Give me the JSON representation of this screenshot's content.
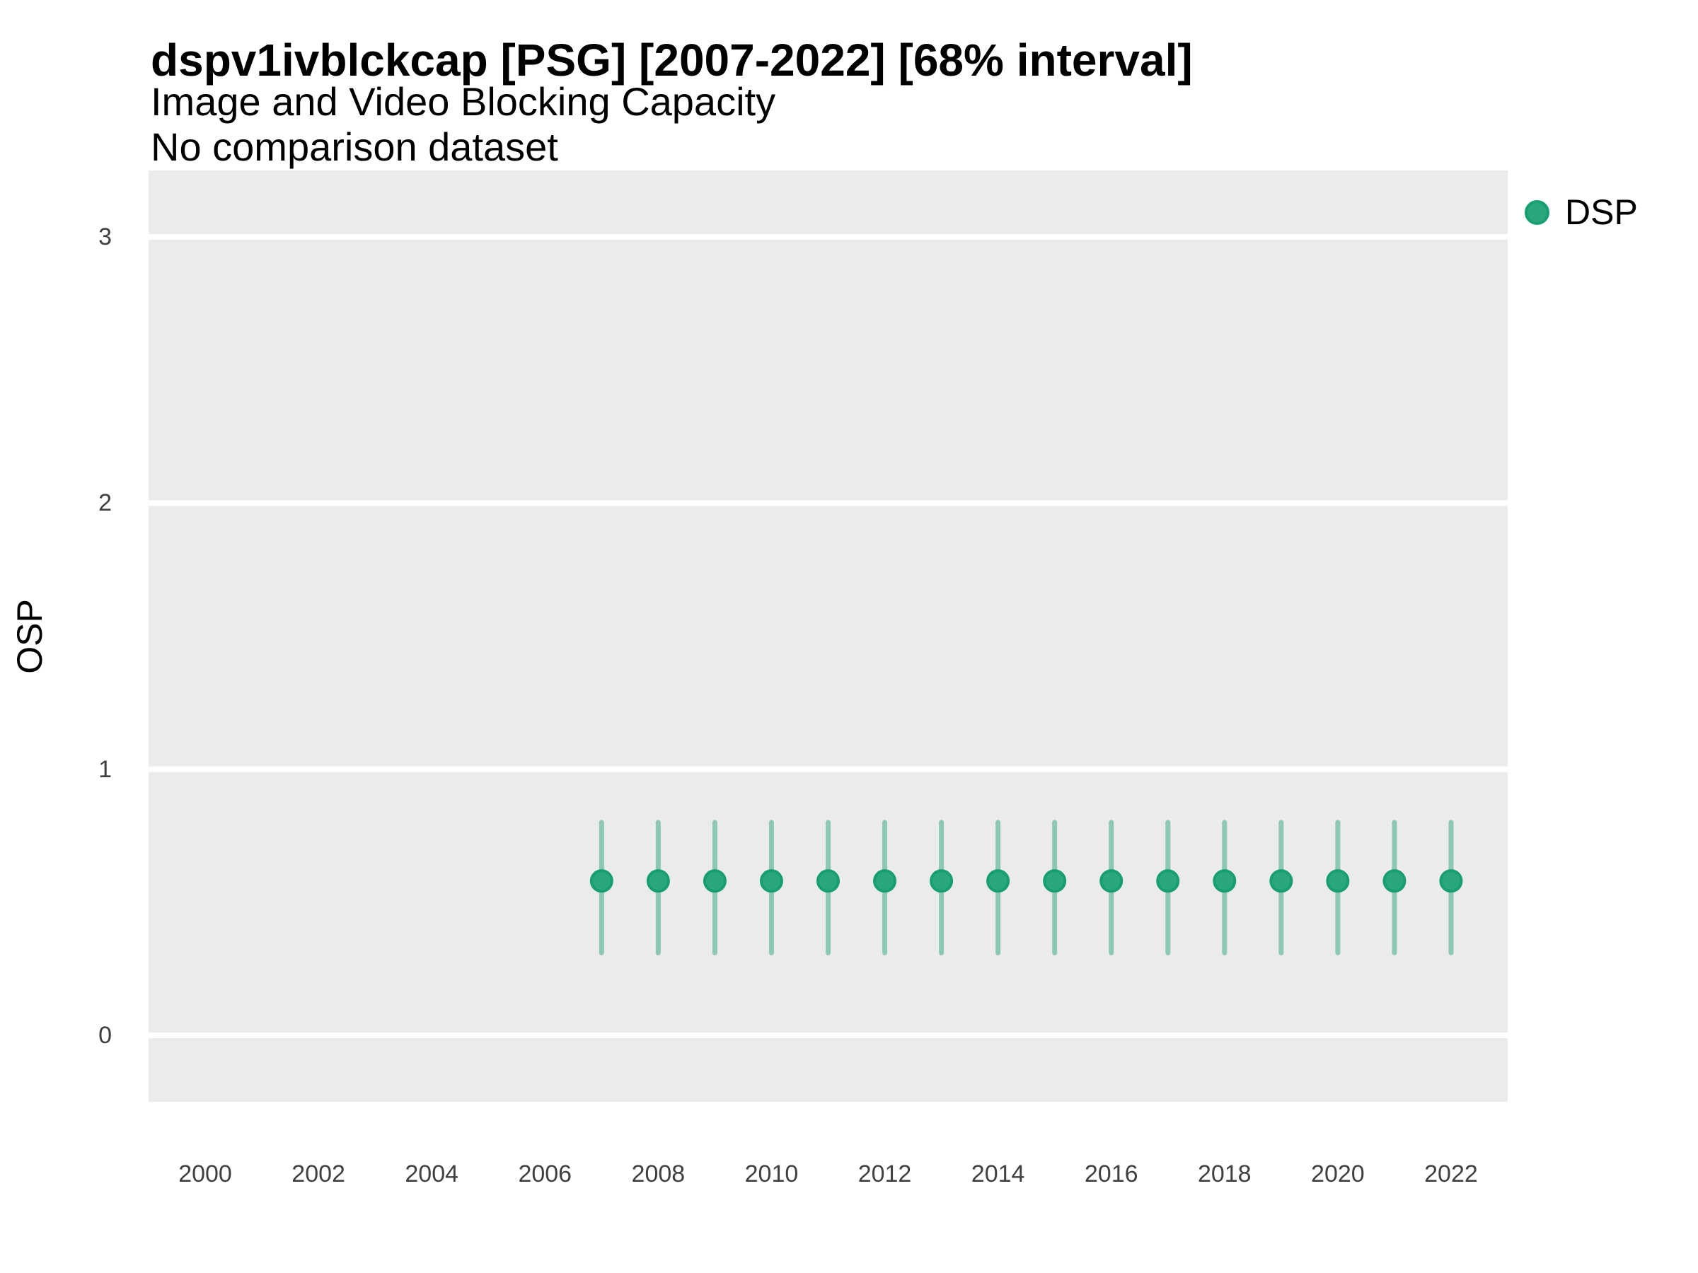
{
  "header": {
    "title": "dspv1ivblckcap [PSG] [2007-2022] [68% interval]",
    "subtitle_line1": "Image and Video Blocking Capacity",
    "subtitle_line2": "No comparison dataset"
  },
  "legend": {
    "position": "right",
    "items": [
      {
        "label": "DSP",
        "color": "#2AA87C",
        "border_color": "#179E73",
        "shape": "circle"
      }
    ]
  },
  "colors": {
    "panel_background": "#EBEBEB",
    "gridline": "#FFFFFF",
    "point_fill": "#2AA87C",
    "point_stroke": "#179E73",
    "errorbar": "rgba(27,158,119,0.45)",
    "tick_text": "#404040",
    "title_text": "#000000"
  },
  "chart_data": {
    "type": "scatter",
    "title": "dspv1ivblckcap [PSG] [2007-2022] [68% interval]",
    "subtitle": [
      "Image and Video Blocking Capacity",
      "No comparison dataset"
    ],
    "xlabel": "",
    "ylabel": "OSP",
    "interval": "68%",
    "xlim": [
      1999,
      2023
    ],
    "ylim": [
      -0.25,
      3.25
    ],
    "x_ticks": [
      2000,
      2002,
      2004,
      2006,
      2008,
      2010,
      2012,
      2014,
      2016,
      2018,
      2020,
      2022
    ],
    "y_ticks": [
      0,
      1,
      2,
      3
    ],
    "grid": "horizontal-major-only",
    "legend_position": "right",
    "series": [
      {
        "name": "DSP",
        "x": [
          2007,
          2008,
          2009,
          2010,
          2011,
          2012,
          2013,
          2014,
          2015,
          2016,
          2017,
          2018,
          2019,
          2020,
          2021,
          2022
        ],
        "y": [
          0.58,
          0.58,
          0.58,
          0.58,
          0.58,
          0.58,
          0.58,
          0.58,
          0.58,
          0.58,
          0.58,
          0.58,
          0.58,
          0.58,
          0.58,
          0.58
        ],
        "y_lower": [
          0.31,
          0.31,
          0.31,
          0.31,
          0.31,
          0.31,
          0.31,
          0.31,
          0.31,
          0.31,
          0.31,
          0.31,
          0.31,
          0.31,
          0.31,
          0.31
        ],
        "y_upper": [
          0.8,
          0.8,
          0.8,
          0.8,
          0.8,
          0.8,
          0.8,
          0.8,
          0.8,
          0.8,
          0.8,
          0.8,
          0.8,
          0.8,
          0.8,
          0.8
        ]
      }
    ]
  }
}
